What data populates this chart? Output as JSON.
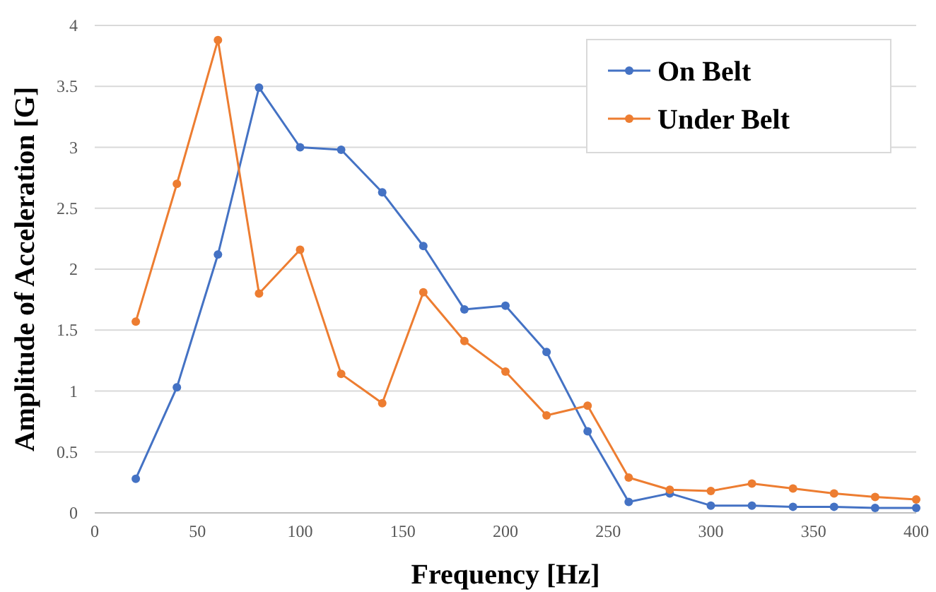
{
  "chart_data": {
    "type": "line",
    "xlabel": "Frequency [Hz]",
    "ylabel": "Amplitude of Acceleration [G]",
    "x": [
      20,
      40,
      60,
      80,
      100,
      120,
      140,
      160,
      180,
      200,
      220,
      240,
      260,
      280,
      300,
      320,
      340,
      360,
      380,
      400
    ],
    "series": [
      {
        "name": "On Belt",
        "color": "#4472c4",
        "values": [
          0.28,
          1.03,
          2.12,
          3.49,
          3.0,
          2.98,
          2.63,
          2.19,
          1.67,
          1.7,
          1.32,
          0.67,
          0.09,
          0.16,
          0.06,
          0.06,
          0.05,
          0.05,
          0.04,
          0.04
        ]
      },
      {
        "name": "Under Belt",
        "color": "#ed7d31",
        "values": [
          1.57,
          2.7,
          3.88,
          1.8,
          2.16,
          1.14,
          0.9,
          1.81,
          1.41,
          1.16,
          0.8,
          0.88,
          0.29,
          0.19,
          0.18,
          0.24,
          0.2,
          0.16,
          0.13,
          0.11
        ]
      }
    ],
    "xlim": [
      0,
      400
    ],
    "xticks": [
      0,
      50,
      100,
      150,
      200,
      250,
      300,
      350,
      400
    ],
    "ylim": [
      0,
      4
    ],
    "yticks": [
      0,
      0.5,
      1,
      1.5,
      2,
      2.5,
      3,
      3.5,
      4
    ],
    "grid": "y",
    "legend": "top right",
    "marker": "circle",
    "line_style": "solid"
  }
}
